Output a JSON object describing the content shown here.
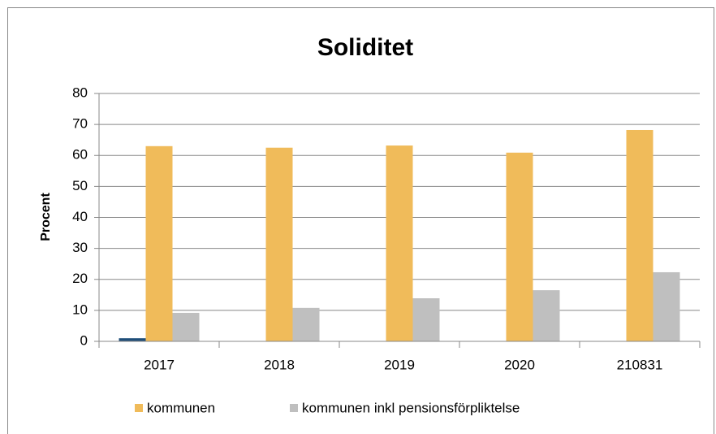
{
  "chart_data": {
    "type": "bar",
    "title": "Soliditet",
    "y_label": "Procent",
    "categories": [
      "2017",
      "2018",
      "2019",
      "2020",
      "210831"
    ],
    "series": [
      {
        "color": "#1f4e79",
        "values": [
          1,
          null,
          null,
          null,
          null
        ]
      },
      {
        "name": "kommunen",
        "color": "#f0bb5a",
        "values": [
          63,
          62.5,
          63.2,
          60.9,
          68.2
        ]
      },
      {
        "name": "kommunen inkl  pensionsförpliktelse",
        "color": "#bfbfbf",
        "values": [
          9.2,
          10.8,
          13.9,
          16.5,
          22.3
        ]
      }
    ],
    "ylim": [
      0,
      80
    ],
    "yticks": [
      0,
      10,
      20,
      30,
      40,
      50,
      60,
      70,
      80
    ],
    "grid": true,
    "legend": "bottom"
  }
}
